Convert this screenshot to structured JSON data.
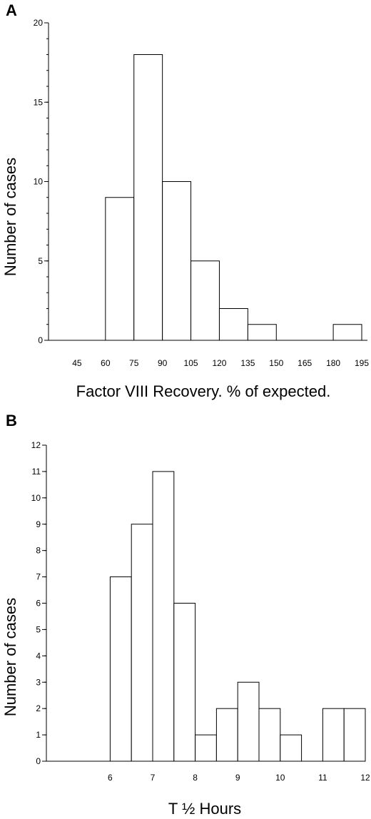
{
  "chart_data": [
    {
      "panel": "A",
      "type": "bar",
      "histogram": true,
      "categories": [
        "45-60",
        "60-75",
        "75-90",
        "90-105",
        "105-120",
        "120-135",
        "135-150",
        "150-165",
        "165-180",
        "180-195"
      ],
      "values": [
        0,
        9,
        18,
        10,
        5,
        2,
        1,
        0,
        0,
        1
      ],
      "bin_edges": [
        45,
        60,
        75,
        90,
        105,
        120,
        135,
        150,
        165,
        180,
        195
      ],
      "x_tick_labels": [
        "45",
        "60",
        "75",
        "90",
        "105",
        "120",
        "135",
        "150",
        "165",
        "180",
        "195"
      ],
      "y_tick_labels": [
        "0",
        "5",
        "10",
        "15",
        "20"
      ],
      "xlabel": "Factor VIII Recovery. % of expected.",
      "ylabel": "Number of cases",
      "ylim": [
        0,
        20
      ]
    },
    {
      "panel": "B",
      "type": "bar",
      "histogram": true,
      "categories": [
        "6-6.5",
        "6.5-7",
        "7-7.5",
        "7.5-8",
        "8-8.5",
        "8.5-9",
        "9-9.5",
        "9.5-10",
        "10-10.5",
        "10.5-11",
        "11-11.5",
        "11.5-12"
      ],
      "values": [
        7,
        9,
        11,
        6,
        1,
        2,
        3,
        2,
        1,
        0,
        2,
        2
      ],
      "bin_edges": [
        6,
        6.5,
        7,
        7.5,
        8,
        8.5,
        9,
        9.5,
        10,
        10.5,
        11,
        11.5,
        12
      ],
      "x_tick_labels": [
        "6",
        "7",
        "8",
        "9",
        "10",
        "11",
        "12"
      ],
      "y_tick_labels": [
        "0",
        "1",
        "2",
        "3",
        "4",
        "5",
        "6",
        "7",
        "8",
        "9",
        "10",
        "11",
        "12"
      ],
      "xlabel": "T ½ Hours",
      "ylabel": "Number of cases",
      "ylim": [
        0,
        12
      ]
    }
  ],
  "panels": {
    "a_letter": "A",
    "b_letter": "B"
  }
}
